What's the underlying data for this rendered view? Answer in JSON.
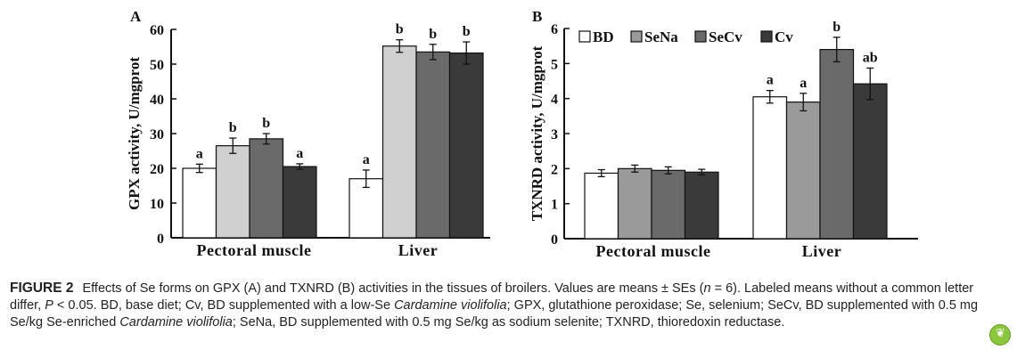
{
  "legend": [
    "BD",
    "SeNa",
    "SeCv",
    "Cv"
  ],
  "colors": {
    "BD": "#ffffff",
    "SeNa_A": "#d0d0d0",
    "SeNa_B": "#9a9a9a",
    "SeCv": "#6a6a6a",
    "Cv": "#3a3a3a",
    "axis": "#111111"
  },
  "chart_data": [
    {
      "panel": "A",
      "type": "bar",
      "ylabel": "GPX  activity, U/mgprot",
      "ylim": [
        0,
        60
      ],
      "yticks": [
        0,
        10,
        20,
        30,
        40,
        50,
        60
      ],
      "categories": [
        "Pectoral muscle",
        "Liver"
      ],
      "series": [
        {
          "name": "BD",
          "values": [
            20,
            17
          ],
          "errors": [
            1.2,
            2.5
          ],
          "letters": [
            "a",
            "a"
          ]
        },
        {
          "name": "SeNa",
          "values": [
            26.5,
            55.2
          ],
          "errors": [
            2.2,
            1.8
          ],
          "letters": [
            "b",
            "b"
          ]
        },
        {
          "name": "SeCv",
          "values": [
            28.5,
            53.5
          ],
          "errors": [
            1.5,
            2.2
          ],
          "letters": [
            "b",
            "b"
          ]
        },
        {
          "name": "Cv",
          "values": [
            20.5,
            53.2
          ],
          "errors": [
            0.8,
            3.2
          ],
          "letters": [
            "a",
            "b"
          ]
        }
      ],
      "legend": false
    },
    {
      "panel": "B",
      "type": "bar",
      "ylabel": "TXNRD activity, U/mgprot",
      "ylim": [
        0,
        6
      ],
      "yticks": [
        0,
        1,
        2,
        3,
        4,
        5,
        6
      ],
      "categories": [
        "Pectoral muscle",
        "Liver"
      ],
      "series": [
        {
          "name": "BD",
          "values": [
            1.87,
            4.05
          ],
          "errors": [
            0.1,
            0.18
          ],
          "letters": [
            "",
            "a"
          ]
        },
        {
          "name": "SeNa",
          "values": [
            2.0,
            3.9
          ],
          "errors": [
            0.1,
            0.25
          ],
          "letters": [
            "",
            "a"
          ]
        },
        {
          "name": "SeCv",
          "values": [
            1.95,
            5.4
          ],
          "errors": [
            0.1,
            0.35
          ],
          "letters": [
            "",
            "b"
          ]
        },
        {
          "name": "Cv",
          "values": [
            1.9,
            4.42
          ],
          "errors": [
            0.08,
            0.45
          ],
          "letters": [
            "",
            "ab"
          ]
        }
      ],
      "legend": "top-left"
    }
  ],
  "caption": {
    "label": "FIGURE 2",
    "p1": "Effects of Se forms on GPX (A) and TXNRD (B) activities in the tissues of broilers. Values are means ± SEs (",
    "n_italic": "n",
    "p2": " = 6). Labeled means without a common letter differ, ",
    "P_italic": "P",
    "p3": " < 0.05. BD, base diet; Cv, BD supplemented with a low-Se ",
    "species1": "Cardamine violifolia",
    "p4": "; GPX, glutathione peroxidase; Se, selenium; SeCv, BD supplemented with 0.5 mg Se/kg Se-enriched ",
    "species2": "Cardamine violifolia",
    "p5": "; SeNa, BD supplemented with 0.5 mg Se/kg as sodium selenite; TXNRD, thioredoxin reductase."
  }
}
